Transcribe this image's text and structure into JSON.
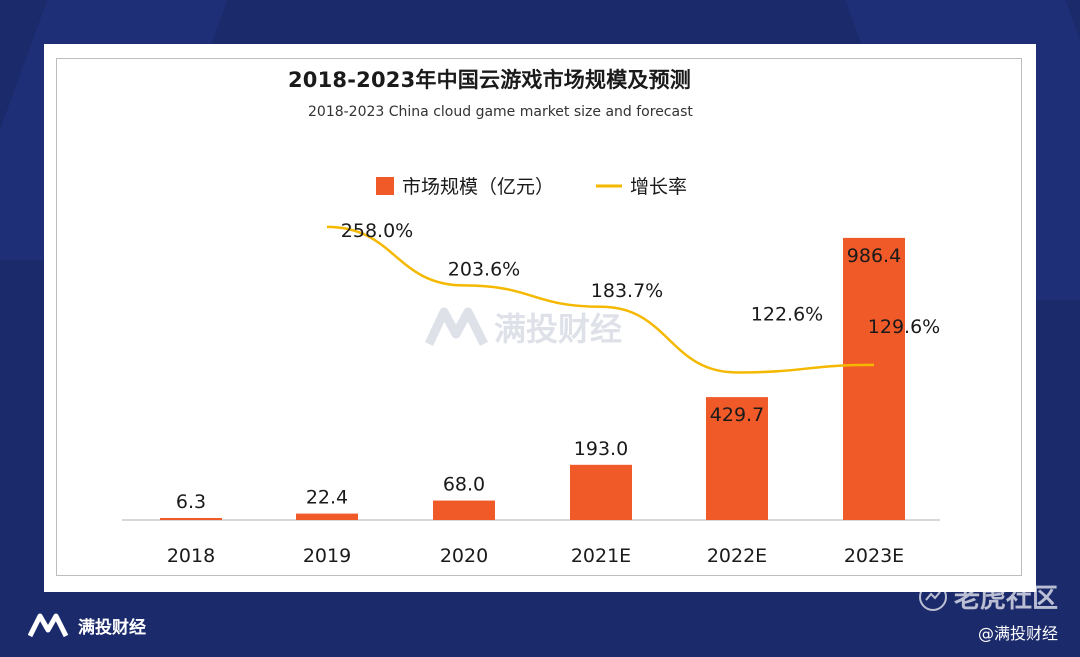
{
  "page": {
    "brand_name": "满投财经",
    "handle": "@满投财经",
    "community_name": "老虎社区",
    "watermark_text": "满投财经"
  },
  "colors": {
    "background": "#1b2a6b",
    "bar": "#f05a28",
    "line": "#f5b800",
    "axis": "#cccccc",
    "text": "#1a1a1a"
  },
  "chart_data": {
    "type": "bar",
    "title": "2018-2023年中国云游戏市场规模及预测",
    "subtitle": "2018-2023 China cloud game market size and forecast",
    "categories": [
      "2018",
      "2019",
      "2020",
      "2021E",
      "2022E",
      "2023E"
    ],
    "series": [
      {
        "name": "市场规模（亿元）",
        "type": "bar",
        "values": [
          6.3,
          22.4,
          68.0,
          193.0,
          429.7,
          986.4
        ],
        "labels": [
          "6.3",
          "22.4",
          "68.0",
          "193.0",
          "429.7",
          "986.4"
        ]
      },
      {
        "name": "增长率",
        "type": "line",
        "values": [
          null,
          258.0,
          203.6,
          183.7,
          122.6,
          129.6
        ],
        "labels": [
          "",
          "258.0%",
          "203.6%",
          "183.7%",
          "122.6%",
          "129.6%"
        ]
      }
    ],
    "legend": "top-center",
    "grid": false,
    "ylim": [
      0,
      1000
    ]
  }
}
